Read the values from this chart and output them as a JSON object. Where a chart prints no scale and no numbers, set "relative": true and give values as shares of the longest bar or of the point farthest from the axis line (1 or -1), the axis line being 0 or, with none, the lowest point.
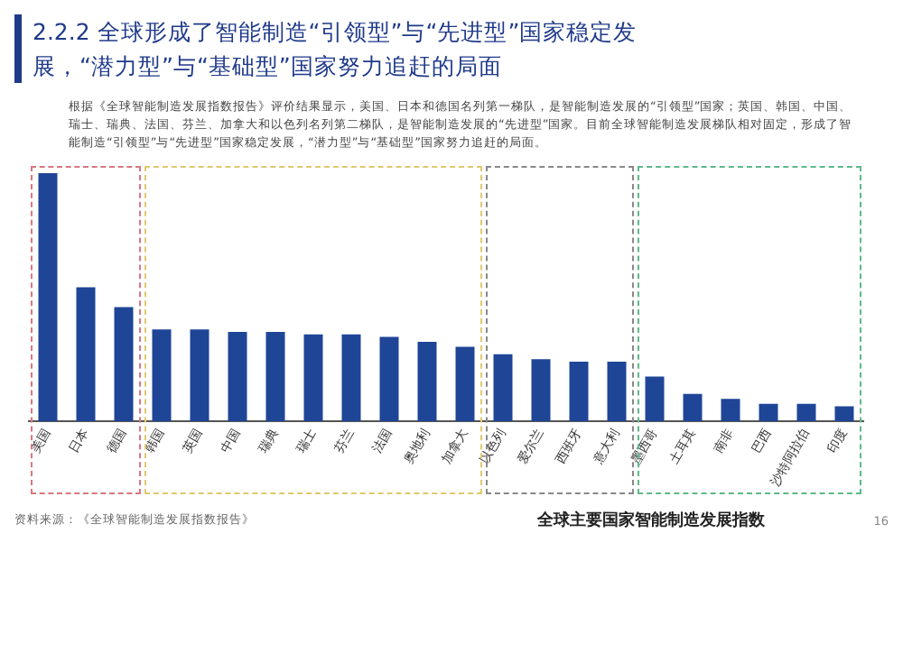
{
  "chart_data": {
    "type": "bar",
    "title": "2.2.2 全球形成了智能制造“引领型”与“先进型”国家稳定发展，“潜力型”与“基础型”国家努力追赶的局面",
    "subtitle": "根据《全球智能制造发展指数报告》评价结果显示，美国、日本和德国名列第一梯队，是智能制造发展的“引领型”国家；英国、韩国、中国、瑞士、瑞典、法国、芬兰、加拿大和以色列名列第二梯队，是智能制造发展的“先进型”国家。目前全球智能制造发展梯队相对固定，形成了智能制造“引领型”与“先进型”国家稳定发展，“潜力型”与“基础型”国家努力追赶的局面。",
    "xlabel": "全球主要国家智能制造发展指数",
    "relative": true,
    "categories": [
      "美国",
      "日本",
      "德国",
      "韩国",
      "英国",
      "中国",
      "瑞典",
      "瑞士",
      "芬兰",
      "法国",
      "奥地利",
      "加拿大",
      "以色列",
      "爱尔兰",
      "西班牙",
      "意大利",
      "墨西哥",
      "土耳其",
      "南非",
      "巴西",
      "沙特阿拉伯",
      "印度"
    ],
    "values": [
      1,
      0.54,
      0.46,
      0.37,
      0.37,
      0.36,
      0.36,
      0.35,
      0.35,
      0.34,
      0.32,
      0.3,
      0.27,
      0.25,
      0.24,
      0.24,
      0.18,
      0.11,
      0.09,
      0.07,
      0.07,
      0.06
    ],
    "color": "#1f4597",
    "annotations": [
      "资料来源：《全球智能制造发展指数报告》",
      "16"
    ],
    "grid": false,
    "legend": false
  }
}
